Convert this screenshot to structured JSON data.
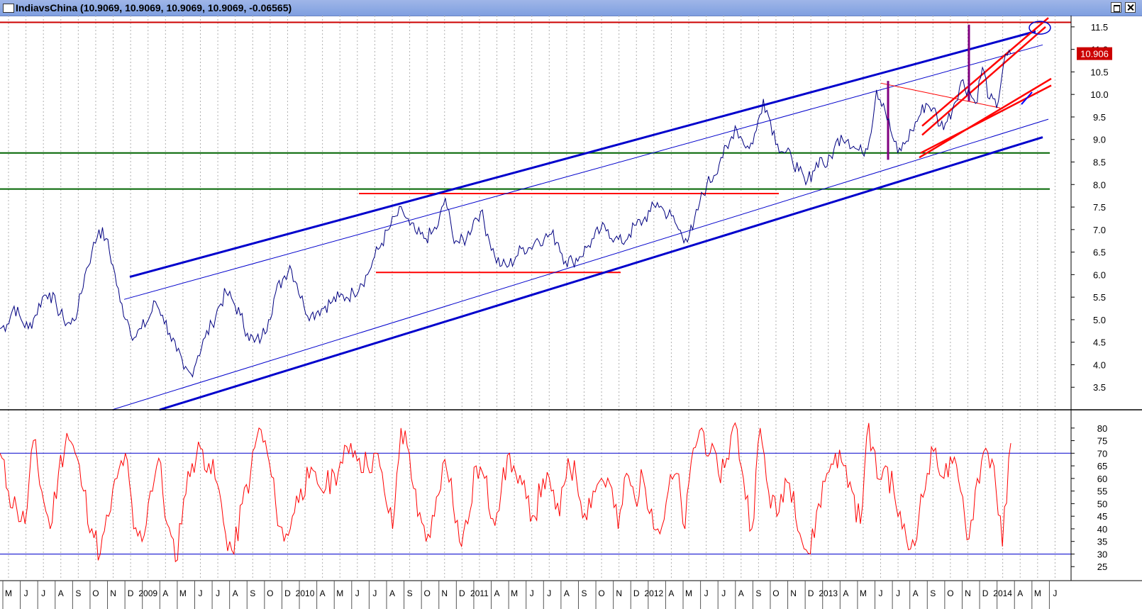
{
  "window": {
    "title": "IndiavsChina",
    "ohlc_text": "(10.9069, 10.9069, 10.9069, 10.9069, -0.06565)"
  },
  "chart_data": [
    {
      "type": "line",
      "name": "IndiavsChina",
      "last_value_label": "10.906",
      "ylim": [
        3.0,
        11.75
      ],
      "ticks": [
        3.5,
        4.0,
        4.5,
        5.0,
        5.5,
        6.0,
        6.5,
        7.0,
        7.5,
        8.0,
        8.5,
        9.0,
        9.5,
        10.0,
        10.5,
        11.0,
        11.5
      ],
      "x_labels": [
        "M",
        "J",
        "J",
        "A",
        "S",
        "O",
        "N",
        "D",
        "2009",
        "A",
        "M",
        "J",
        "J",
        "A",
        "S",
        "O",
        "D",
        "2010",
        "A",
        "M",
        "J",
        "J",
        "A",
        "S",
        "O",
        "N",
        "D",
        "2011",
        "A",
        "M",
        "J",
        "J",
        "A",
        "S",
        "O",
        "N",
        "D",
        "2012",
        "A",
        "M",
        "J",
        "J",
        "A",
        "S",
        "O",
        "N",
        "D",
        "2013",
        "A",
        "M",
        "J",
        "J",
        "A",
        "S",
        "O",
        "N",
        "D",
        "2014",
        "A",
        "M",
        "J"
      ],
      "series": [
        {
          "values": [
            4.8,
            4.9,
            5.3,
            5.0,
            4.8,
            5.1,
            5.5,
            5.6,
            5.3,
            5.0,
            4.9,
            5.2,
            6.0,
            6.5,
            7.0,
            6.8,
            6.2,
            5.4,
            5.0,
            4.6,
            4.8,
            5.0,
            5.4,
            5.1,
            4.7,
            4.3,
            3.9,
            3.8,
            4.2,
            4.6,
            4.9,
            5.3,
            5.6,
            5.4,
            5.1,
            4.7,
            4.5,
            4.6,
            5.0,
            5.6,
            5.9,
            6.2,
            5.8,
            5.3,
            5.1,
            5.2,
            5.3,
            5.4,
            5.5,
            5.5,
            5.6,
            5.8,
            6.0,
            6.4,
            6.7,
            7.0,
            7.3,
            7.4,
            7.1,
            6.9,
            6.8,
            6.9,
            7.1,
            7.7,
            6.9,
            6.7,
            6.8,
            7.2,
            7.4,
            6.9,
            6.4,
            6.2,
            6.2,
            6.4,
            6.6,
            6.6,
            6.8,
            6.8,
            6.9,
            6.7,
            6.3,
            6.3,
            6.4,
            6.6,
            6.8,
            7.0,
            7.0,
            6.8,
            6.7,
            6.9,
            7.1,
            7.2,
            7.4,
            7.6,
            7.4,
            7.3,
            7.0,
            6.8,
            7.0,
            7.6,
            8.0,
            8.2,
            8.6,
            8.8,
            9.3,
            9.0,
            8.8,
            9.2,
            9.9,
            9.4,
            8.9,
            8.7,
            8.6,
            8.3,
            8.0,
            8.3,
            8.6,
            8.4,
            8.8,
            9.1,
            9.0,
            8.8,
            8.7,
            9.0,
            10.1,
            9.8,
            9.2,
            8.7,
            8.9,
            9.2,
            9.5,
            9.8,
            9.7,
            9.3,
            9.4,
            9.8,
            10.3,
            10.1,
            9.8,
            10.6,
            9.9,
            9.7,
            10.7,
            10.9
          ]
        }
      ],
      "annotations": {
        "horizontal_lines": [
          11.6,
          8.7,
          7.9,
          7.8,
          6.05
        ],
        "channel_lines": "blue rising channel, red short-term channel, purple vertical markers"
      }
    },
    {
      "type": "line",
      "name": "oscillator",
      "ylim": [
        20,
        85
      ],
      "ticks": [
        25,
        30,
        35,
        40,
        45,
        50,
        55,
        60,
        65,
        70,
        75,
        80
      ],
      "reference_lines": [
        70,
        30
      ],
      "series": [
        {
          "values": [
            70,
            55,
            48,
            42,
            75,
            55,
            40,
            62,
            78,
            70,
            55,
            40,
            30,
            45,
            60,
            70,
            40,
            35,
            55,
            68,
            42,
            27,
            52,
            66,
            72,
            66,
            58,
            38,
            30,
            50,
            62,
            80,
            70,
            50,
            35,
            45,
            56,
            60,
            58,
            56,
            62,
            66,
            74,
            68,
            65,
            70,
            55,
            40,
            80,
            70,
            45,
            35,
            45,
            66,
            60,
            35,
            42,
            65,
            60,
            44,
            55,
            70,
            58,
            52,
            45,
            60,
            55,
            45,
            68,
            60,
            46,
            55,
            60,
            58,
            40,
            62,
            52,
            60,
            48,
            38,
            55,
            62,
            40,
            72,
            80,
            70,
            62,
            68,
            82,
            60,
            40,
            80,
            55,
            45,
            60,
            55,
            35,
            30,
            50,
            62,
            70,
            65,
            55,
            42,
            82,
            60,
            65,
            55,
            40,
            32,
            45,
            62,
            72,
            60,
            66,
            55,
            36,
            60,
            72,
            65,
            33,
            74
          ]
        }
      ]
    }
  ]
}
